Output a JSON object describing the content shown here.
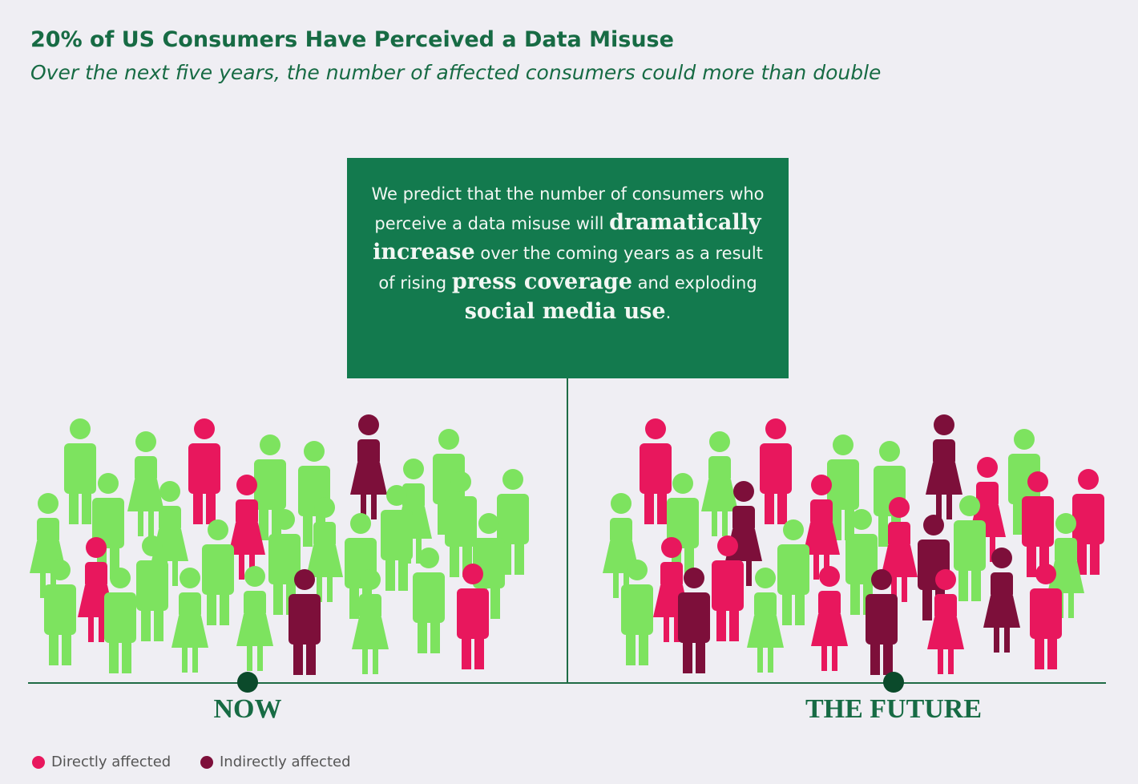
{
  "header": {
    "title": "20% of US Consumers Have Perceived a Data Misuse",
    "subtitle": "Over the next five years, the number of affected consumers could more than double"
  },
  "callout": {
    "segments": [
      "We predict that the number of consumers who perceive a data misuse will ",
      "dramatically increase",
      " over the coming years as a result of rising ",
      "press coverage",
      " and exploding ",
      "social media use",
      "."
    ]
  },
  "timeline": {
    "labels": [
      "NOW",
      "THE FUTURE"
    ]
  },
  "legend": {
    "items": [
      "Directly affected",
      "Indirectly affected"
    ]
  }
}
